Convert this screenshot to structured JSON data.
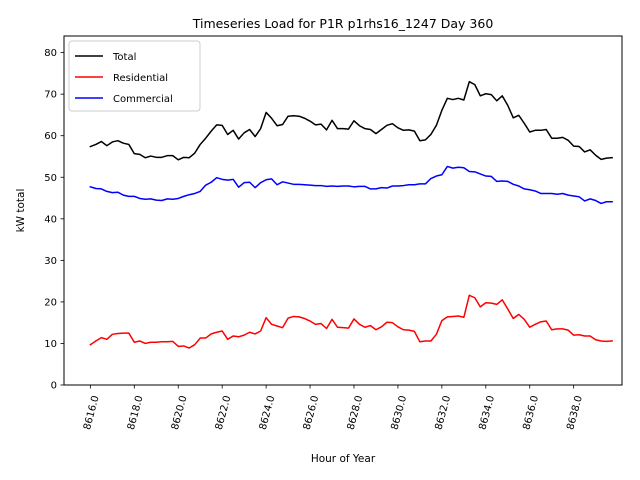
{
  "chart_data": {
    "type": "line",
    "title": "Timeseries Load for P1R p1rhs16_1247  Day 360",
    "xlabel": "Hour of Year",
    "ylabel": "kW total",
    "xlim": [
      8614.8,
      8640.2
    ],
    "ylim": [
      0,
      84
    ],
    "x_ticks": [
      8616,
      8618,
      8620,
      8622,
      8624,
      8626,
      8628,
      8630,
      8632,
      8634,
      8636,
      8638
    ],
    "x_tick_labels": [
      "8616.0",
      "8618.0",
      "8620.0",
      "8622.0",
      "8624.0",
      "8626.0",
      "8628.0",
      "8630.0",
      "8632.0",
      "8634.0",
      "8636.0",
      "8638.0"
    ],
    "y_ticks": [
      0,
      10,
      20,
      30,
      40,
      50,
      60,
      70,
      80
    ],
    "y_tick_labels": [
      "0",
      "10",
      "20",
      "30",
      "40",
      "50",
      "60",
      "70",
      "80"
    ],
    "legend_position": "top-left",
    "x_start": 8616.0,
    "x_step": 0.25,
    "series": [
      {
        "name": "Total",
        "color": "#000000",
        "values": [
          57.4,
          57.9,
          58.6,
          57.6,
          58.5,
          58.8,
          58.2,
          57.9,
          55.7,
          55.5,
          54.7,
          55.1,
          54.8,
          54.8,
          55.2,
          55.2,
          54.2,
          54.8,
          54.7,
          55.8,
          57.9,
          59.4,
          61.1,
          62.6,
          62.5,
          60.3,
          61.3,
          59.2,
          60.7,
          61.5,
          59.8,
          61.7,
          65.6,
          64.2,
          62.4,
          62.7,
          64.7,
          64.8,
          64.7,
          64.2,
          63.5,
          62.6,
          62.8,
          61.4,
          63.7,
          61.7,
          61.7,
          61.6,
          63.6,
          62.4,
          61.7,
          61.5,
          60.5,
          61.5,
          62.5,
          62.9,
          61.9,
          61.3,
          61.4,
          61.1,
          58.8,
          59.0,
          60.3,
          62.5,
          66.1,
          69.0,
          68.7,
          69.0,
          68.6,
          73.0,
          72.3,
          69.6,
          70.1,
          69.9,
          68.4,
          69.6,
          67.3,
          64.3,
          64.9,
          63.0,
          60.9,
          61.3,
          61.3,
          61.5,
          59.4,
          59.4,
          59.6,
          58.9,
          57.5,
          57.4,
          56.1,
          56.6,
          55.3,
          54.3,
          54.6,
          54.7
        ]
      },
      {
        "name": "Residential",
        "color": "#ff0000",
        "values": [
          9.7,
          10.6,
          11.4,
          11.0,
          12.2,
          12.4,
          12.5,
          12.5,
          10.3,
          10.6,
          10.0,
          10.3,
          10.3,
          10.4,
          10.4,
          10.5,
          9.3,
          9.4,
          8.9,
          9.7,
          11.3,
          11.3,
          12.3,
          12.7,
          13.0,
          11.0,
          11.8,
          11.6,
          12.0,
          12.7,
          12.3,
          13.0,
          16.2,
          14.6,
          14.2,
          13.8,
          16.1,
          16.5,
          16.4,
          16.0,
          15.4,
          14.6,
          14.8,
          13.6,
          15.8,
          13.9,
          13.8,
          13.7,
          15.9,
          14.6,
          13.9,
          14.3,
          13.3,
          14.0,
          15.1,
          15.0,
          14.0,
          13.3,
          13.2,
          12.9,
          10.4,
          10.6,
          10.6,
          12.2,
          15.5,
          16.4,
          16.5,
          16.6,
          16.3,
          21.6,
          21.0,
          18.8,
          19.8,
          19.7,
          19.4,
          20.5,
          18.3,
          16.0,
          17.0,
          15.8,
          13.9,
          14.6,
          15.2,
          15.4,
          13.3,
          13.5,
          13.5,
          13.2,
          12.0,
          12.1,
          11.8,
          11.8,
          10.9,
          10.6,
          10.5,
          10.6
        ]
      },
      {
        "name": "Commercial",
        "color": "#0000ff",
        "values": [
          47.7,
          47.3,
          47.2,
          46.6,
          46.3,
          46.4,
          45.7,
          45.4,
          45.4,
          44.9,
          44.7,
          44.8,
          44.5,
          44.4,
          44.8,
          44.7,
          44.9,
          45.4,
          45.8,
          46.1,
          46.6,
          48.1,
          48.8,
          49.9,
          49.5,
          49.3,
          49.5,
          47.6,
          48.7,
          48.8,
          47.5,
          48.7,
          49.4,
          49.6,
          48.2,
          48.9,
          48.6,
          48.3,
          48.3,
          48.2,
          48.1,
          48.0,
          48.0,
          47.8,
          47.9,
          47.8,
          47.9,
          47.9,
          47.7,
          47.8,
          47.8,
          47.2,
          47.2,
          47.5,
          47.4,
          47.9,
          47.9,
          48.0,
          48.2,
          48.2,
          48.4,
          48.4,
          49.7,
          50.3,
          50.6,
          52.6,
          52.2,
          52.4,
          52.3,
          51.4,
          51.3,
          50.8,
          50.3,
          50.2,
          49.0,
          49.1,
          49.0,
          48.3,
          47.9,
          47.2,
          47.0,
          46.7,
          46.1,
          46.1,
          46.1,
          45.9,
          46.1,
          45.7,
          45.5,
          45.3,
          44.3,
          44.8,
          44.4,
          43.7,
          44.1,
          44.1
        ]
      }
    ]
  }
}
